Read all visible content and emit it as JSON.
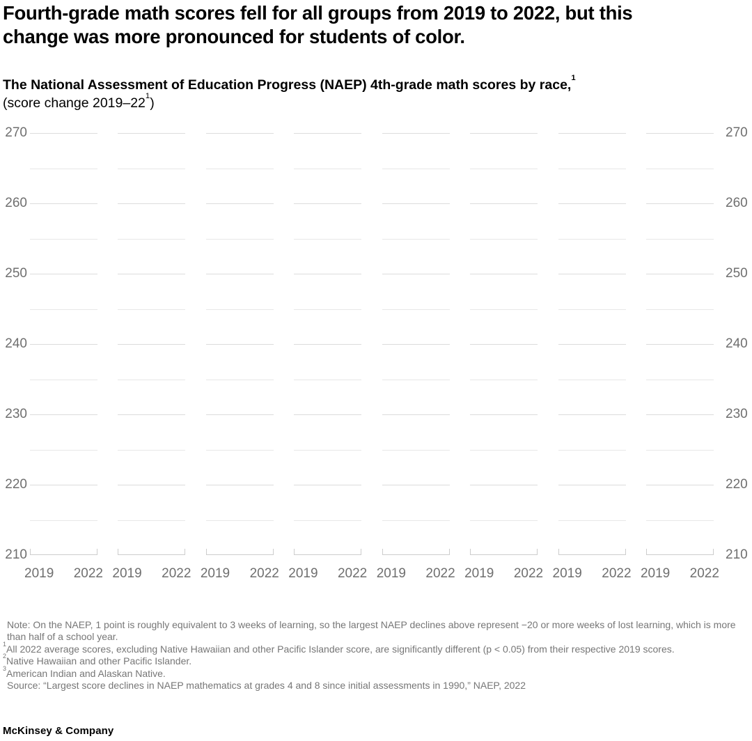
{
  "header": {
    "title": "Fourth-grade math scores fell for all groups from 2019 to 2022, but this change was more pronounced for students of color."
  },
  "subtitle": {
    "line1_text": "The National Assessment of Education Progress (NAEP) 4th-grade math scores by race,",
    "line1_sup": "1",
    "line2_pre": "(score change 2019–22",
    "line2_sup": "1",
    "line2_post": ")"
  },
  "chart_data": {
    "type": "line",
    "subtype": "slope-small-multiples",
    "panels": 8,
    "x_categories": [
      "2019",
      "2022"
    ],
    "ylim": [
      210,
      270
    ],
    "yticks_major": [
      210,
      220,
      230,
      240,
      250,
      260,
      270
    ],
    "yticks_minor": [
      215,
      225,
      235,
      245,
      255,
      265
    ],
    "y_axis_sides": [
      "left",
      "right"
    ],
    "grid": true,
    "legend": "none",
    "series": [],
    "values_rendered": false
  },
  "footnotes": [
    {
      "sup": "",
      "text": "Note: On the NAEP, 1 point is roughly equivalent to 3 weeks of learning, so the largest NAEP declines above represent −20 or more weeks of lost learning, which is more than half of a school year."
    },
    {
      "sup": "1",
      "text": "All 2022 average scores, excluding Native Hawaiian and other Pacific Islander score, are significantly different (p < 0.05) from their respective 2019 scores."
    },
    {
      "sup": "2",
      "text": "Native Hawaiian and other Pacific Islander."
    },
    {
      "sup": "3",
      "text": "American Indian and Alaskan Native."
    },
    {
      "sup": "",
      "text": "Source: “Largest score declines in NAEP mathematics at grades 4 and 8 since initial assessments in 1990,” NAEP, 2022"
    }
  ],
  "footer": {
    "brand": "McKinsey & Company"
  },
  "colors": {
    "title": "#000000",
    "axis_label": "#6f6f6f",
    "gridline_major": "#dcdcdc",
    "gridline_minor": "#e7e7e7",
    "axis_line": "#cccccc",
    "footnote": "#767676",
    "background": "#ffffff"
  }
}
